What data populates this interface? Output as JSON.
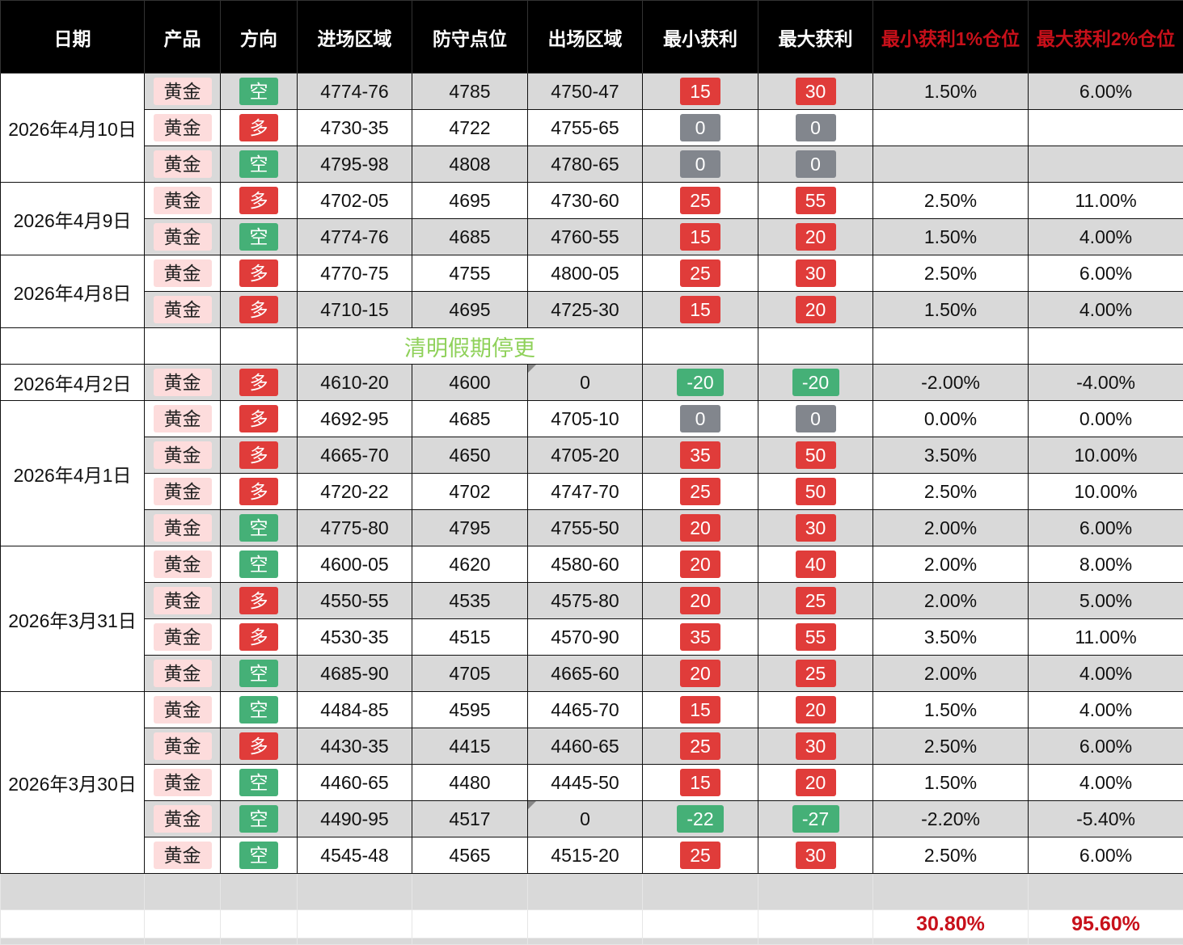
{
  "headers": [
    "日期",
    "产品",
    "方向",
    "进场区域",
    "防守点位",
    "出场区域",
    "最小获利",
    "最大获利",
    "最小获利1%仓位",
    "最大获利2%仓位"
  ],
  "colors": {
    "long": "#e03c3a",
    "short": "#45b077",
    "zero": "#82868d",
    "loss": "#45b077",
    "profit": "#e03c3a",
    "product_bg": "#fddcdc",
    "header_accent": "#c8101a",
    "note": "#8fd15a"
  },
  "groups": [
    {
      "date": "2026年4月10日",
      "rows": [
        {
          "product": "黄金",
          "dir": "空",
          "entry": "4774-76",
          "stop": "4785",
          "exit": "4750-47",
          "min": "15",
          "max": "30",
          "p1": "1.50%",
          "p2": "6.00%"
        },
        {
          "product": "黄金",
          "dir": "多",
          "entry": "4730-35",
          "stop": "4722",
          "exit": "4755-65",
          "min": "0",
          "max": "0",
          "p1": "",
          "p2": ""
        },
        {
          "product": "黄金",
          "dir": "空",
          "entry": "4795-98",
          "stop": "4808",
          "exit": "4780-65",
          "min": "0",
          "max": "0",
          "p1": "",
          "p2": ""
        }
      ]
    },
    {
      "date": "2026年4月9日",
      "rows": [
        {
          "product": "黄金",
          "dir": "多",
          "entry": "4702-05",
          "stop": "4695",
          "exit": "4730-60",
          "min": "25",
          "max": "55",
          "p1": "2.50%",
          "p2": "11.00%"
        },
        {
          "product": "黄金",
          "dir": "空",
          "entry": "4774-76",
          "stop": "4685",
          "exit": "4760-55",
          "min": "15",
          "max": "20",
          "p1": "1.50%",
          "p2": "4.00%"
        }
      ]
    },
    {
      "date": "2026年4月8日",
      "rows": [
        {
          "product": "黄金",
          "dir": "多",
          "entry": "4770-75",
          "stop": "4755",
          "exit": "4800-05",
          "min": "25",
          "max": "30",
          "p1": "2.50%",
          "p2": "6.00%"
        },
        {
          "product": "黄金",
          "dir": "多",
          "entry": "4710-15",
          "stop": "4695",
          "exit": "4725-30",
          "min": "15",
          "max": "20",
          "p1": "1.50%",
          "p2": "4.00%"
        }
      ]
    },
    {
      "date": "",
      "note": "清明假期停更",
      "rows": []
    },
    {
      "date": "2026年4月2日",
      "rows": [
        {
          "product": "黄金",
          "dir": "多",
          "entry": "4610-20",
          "stop": "4600",
          "exit": "0",
          "min": "-20",
          "max": "-20",
          "p1": "-2.00%",
          "p2": "-4.00%",
          "flag": true
        }
      ]
    },
    {
      "date": "2026年4月1日",
      "rows": [
        {
          "product": "黄金",
          "dir": "多",
          "entry": "4692-95",
          "stop": "4685",
          "exit": "4705-10",
          "min": "0",
          "max": "0",
          "p1": "0.00%",
          "p2": "0.00%"
        },
        {
          "product": "黄金",
          "dir": "多",
          "entry": "4665-70",
          "stop": "4650",
          "exit": "4705-20",
          "min": "35",
          "max": "50",
          "p1": "3.50%",
          "p2": "10.00%"
        },
        {
          "product": "黄金",
          "dir": "多",
          "entry": "4720-22",
          "stop": "4702",
          "exit": "4747-70",
          "min": "25",
          "max": "50",
          "p1": "2.50%",
          "p2": "10.00%"
        },
        {
          "product": "黄金",
          "dir": "空",
          "entry": "4775-80",
          "stop": "4795",
          "exit": "4755-50",
          "min": "20",
          "max": "30",
          "p1": "2.00%",
          "p2": "6.00%"
        }
      ]
    },
    {
      "date": "2026年3月31日",
      "rows": [
        {
          "product": "黄金",
          "dir": "空",
          "entry": "4600-05",
          "stop": "4620",
          "exit": "4580-60",
          "min": "20",
          "max": "40",
          "p1": "2.00%",
          "p2": "8.00%"
        },
        {
          "product": "黄金",
          "dir": "多",
          "entry": "4550-55",
          "stop": "4535",
          "exit": "4575-80",
          "min": "20",
          "max": "25",
          "p1": "2.00%",
          "p2": "5.00%"
        },
        {
          "product": "黄金",
          "dir": "多",
          "entry": "4530-35",
          "stop": "4515",
          "exit": "4570-90",
          "min": "35",
          "max": "55",
          "p1": "3.50%",
          "p2": "11.00%"
        },
        {
          "product": "黄金",
          "dir": "空",
          "entry": "4685-90",
          "stop": "4705",
          "exit": "4665-60",
          "min": "20",
          "max": "25",
          "p1": "2.00%",
          "p2": "4.00%"
        }
      ]
    },
    {
      "date": "2026年3月30日",
      "rows": [
        {
          "product": "黄金",
          "dir": "空",
          "entry": "4484-85",
          "stop": "4595",
          "exit": "4465-70",
          "min": "15",
          "max": "20",
          "p1": "1.50%",
          "p2": "4.00%"
        },
        {
          "product": "黄金",
          "dir": "多",
          "entry": "4430-35",
          "stop": "4415",
          "exit": "4460-65",
          "min": "25",
          "max": "30",
          "p1": "2.50%",
          "p2": "6.00%"
        },
        {
          "product": "黄金",
          "dir": "空",
          "entry": "4460-65",
          "stop": "4480",
          "exit": "4445-50",
          "min": "15",
          "max": "20",
          "p1": "1.50%",
          "p2": "4.00%"
        },
        {
          "product": "黄金",
          "dir": "空",
          "entry": "4490-95",
          "stop": "4517",
          "exit": "0",
          "min": "-22",
          "max": "-27",
          "p1": "-2.20%",
          "p2": "-5.40%",
          "flag": true
        },
        {
          "product": "黄金",
          "dir": "空",
          "entry": "4545-48",
          "stop": "4565",
          "exit": "4515-20",
          "min": "25",
          "max": "30",
          "p1": "2.50%",
          "p2": "6.00%"
        }
      ]
    }
  ],
  "totals": {
    "p1": "30.80%",
    "p2": "95.60%"
  }
}
